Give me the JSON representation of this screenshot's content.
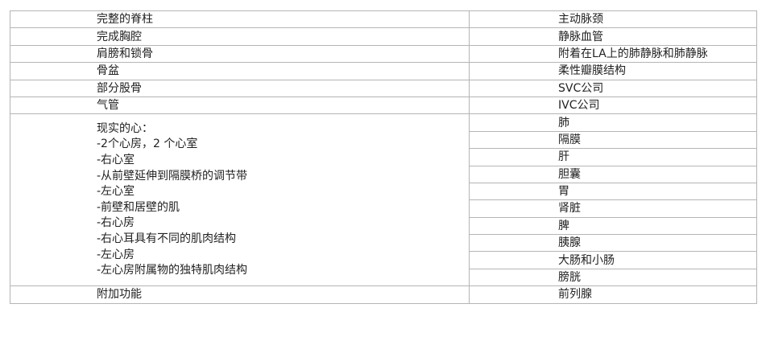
{
  "table": {
    "left_top": [
      "完整的脊柱",
      "完成胸腔",
      "肩膀和锁骨",
      "骨盆",
      "部分股骨",
      "气管"
    ],
    "right_top": [
      "主动脉颈",
      "静脉血管",
      "附着在LA上的肺静脉和肺静脉",
      "柔性瓣膜结构",
      "SVC公司",
      "IVC公司"
    ],
    "heart_lines": [
      "现实的心：",
      "-2个心房，2 个心室",
      "-右心室",
      "-从前壁延伸到隔膜桥的调节带",
      "-左心室",
      "-前壁和居壁的肌",
      "-右心房",
      "-右心耳具有不同的肌肉结构",
      "-左心房",
      "-左心房附属物的独特肌肉结构"
    ],
    "right_organs": [
      "肺",
      "隔膜",
      "肝",
      "胆囊",
      "胃",
      "肾脏",
      "脾",
      "胰腺",
      "大肠和小肠",
      "膀胱"
    ],
    "last_left": "附加功能",
    "last_right": "前列腺"
  }
}
